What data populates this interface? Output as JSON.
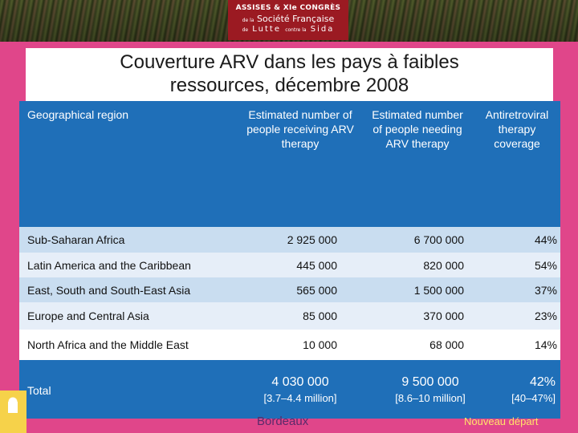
{
  "banner": {
    "logo_line1": "ASSISES & XIe CONGRÈS",
    "logo_line2_prefix": "de la",
    "logo_line2_main": "Société Française",
    "logo_line3_prefix": "de",
    "logo_line3_main": "Lutte",
    "logo_line3_mid": "contre la",
    "logo_line3_end": "Sida"
  },
  "title": {
    "line1": "Couverture ARV dans les pays à faibles",
    "line2": "ressources, décembre 2008"
  },
  "table": {
    "headers": {
      "region": "Geographical region",
      "receiving": "Estimated number of people receiving ARV therapy",
      "needing": "Estimated number of people needing ARV therapy",
      "coverage": "Antiretroviral therapy coverage"
    },
    "rows": [
      {
        "region": "Sub-Saharan Africa",
        "receiving": "2 925 000",
        "needing": "6 700 000",
        "coverage": "44%"
      },
      {
        "region": "Latin America and the Caribbean",
        "receiving": "445 000",
        "needing": "820 000",
        "coverage": "54%"
      },
      {
        "region": "East, South and South-East Asia",
        "receiving": "565 000",
        "needing": "1 500 000",
        "coverage": "37%"
      },
      {
        "region": "Europe and Central Asia",
        "receiving": "85 000",
        "needing": "370 000",
        "coverage": "23%"
      },
      {
        "region": "North Africa and the Middle East",
        "receiving": "10 000",
        "needing": "68 000",
        "coverage": "14%"
      }
    ],
    "total": {
      "label": "Total",
      "receiving": "4 030 000",
      "receiving_range": "[3.7–4.4 million]",
      "needing": "9 500 000",
      "needing_range": "[8.6–10 million]",
      "coverage": "42%",
      "coverage_range": "[40–47%]"
    }
  },
  "footer": {
    "city": "Bordeaux",
    "new_start": "Nouveau départ"
  },
  "colors": {
    "background": "#e0468a",
    "header_blue": "#1f6fb8",
    "row_light_blue": "#c9ddf0",
    "logo_red": "#9b1a22"
  }
}
